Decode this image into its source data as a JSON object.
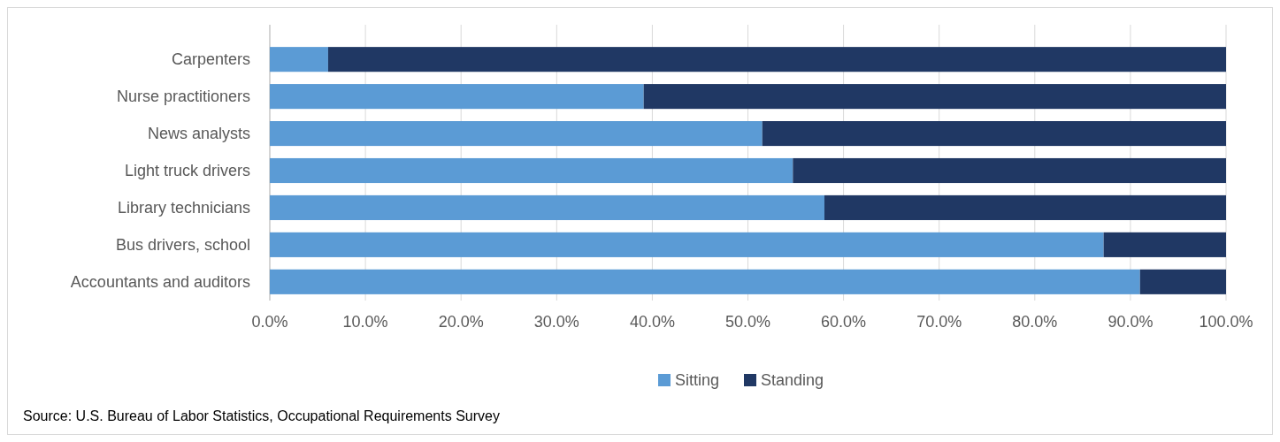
{
  "chart_data": {
    "type": "bar",
    "orientation": "horizontal",
    "stacked": true,
    "categories": [
      "Carpenters",
      "Nurse practitioners",
      "News analysts",
      "Light truck drivers",
      "Library technicians",
      "Bus drivers, school",
      "Accountants and auditors"
    ],
    "series": [
      {
        "name": "Sitting",
        "color": "#5b9bd5",
        "values": [
          6.1,
          39.1,
          51.5,
          54.7,
          58.0,
          87.2,
          91.0
        ]
      },
      {
        "name": "Standing",
        "color": "#203864",
        "values": [
          93.9,
          60.9,
          48.5,
          45.3,
          42.0,
          12.8,
          9.0
        ]
      }
    ],
    "xlim": [
      0,
      100
    ],
    "xticks": [
      {
        "value": 0,
        "label": "0.0%"
      },
      {
        "value": 10,
        "label": "10.0%"
      },
      {
        "value": 20,
        "label": "20.0%"
      },
      {
        "value": 30,
        "label": "30.0%"
      },
      {
        "value": 40,
        "label": "40.0%"
      },
      {
        "value": 50,
        "label": "50.0%"
      },
      {
        "value": 60,
        "label": "60.0%"
      },
      {
        "value": 70,
        "label": "70.0%"
      },
      {
        "value": 80,
        "label": "80.0%"
      },
      {
        "value": 90,
        "label": "90.0%"
      },
      {
        "value": 100,
        "label": "100.0%"
      }
    ],
    "grid": "x",
    "legend": "bottom",
    "annotations": [
      "Source: U.S. Bureau of Labor Statistics, Occupational Requirements Survey"
    ]
  }
}
